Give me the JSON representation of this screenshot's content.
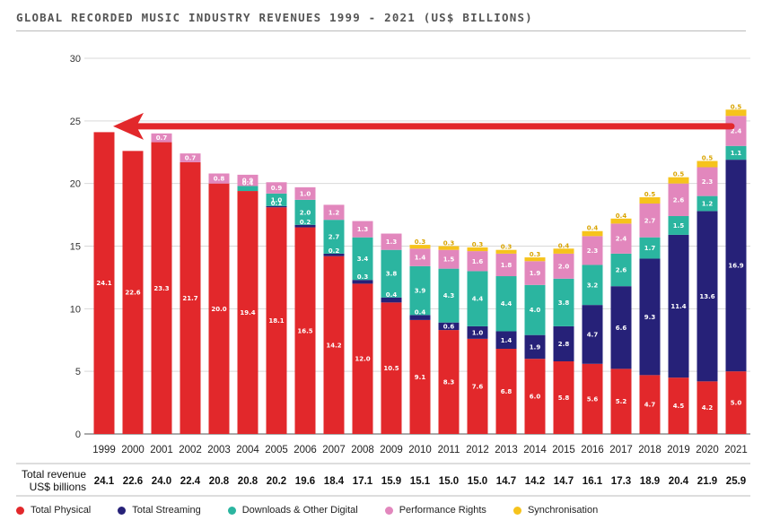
{
  "chart_data": {
    "type": "bar",
    "stacked": true,
    "title": "GLOBAL RECORDED MUSIC INDUSTRY REVENUES 1999 - 2021 (US$ BILLIONS)",
    "xlabel": "",
    "ylabel": "",
    "ylim": [
      0,
      30
    ],
    "yticks": [
      0,
      5,
      10,
      15,
      20,
      25,
      30
    ],
    "grid": true,
    "legend_position": "bottom",
    "categories": [
      "1999",
      "2000",
      "2001",
      "2002",
      "2003",
      "2004",
      "2005",
      "2006",
      "2007",
      "2008",
      "2009",
      "2010",
      "2011",
      "2012",
      "2013",
      "2014",
      "2015",
      "2016",
      "2017",
      "2018",
      "2019",
      "2020",
      "2021"
    ],
    "series": [
      {
        "name": "Total Physical",
        "color": "#e2282b",
        "values": [
          24.1,
          22.6,
          23.3,
          21.7,
          20.0,
          19.4,
          18.1,
          16.5,
          14.2,
          12.0,
          10.5,
          9.1,
          8.3,
          7.6,
          6.8,
          6.0,
          5.8,
          5.6,
          5.2,
          4.7,
          4.5,
          4.2,
          5.0
        ],
        "labels": [
          "24.1",
          "22.6",
          "23.3",
          "21.7",
          "20.0",
          "19.4",
          "18.1",
          "16.5",
          "14.2",
          "12.0",
          "10.5",
          "9.1",
          "8.3",
          "7.6",
          "6.8",
          "6.0",
          "5.8",
          "5.6",
          "5.2",
          "4.7",
          "4.5",
          "4.2",
          "5.0"
        ]
      },
      {
        "name": "Total Streaming",
        "color": "#262178",
        "values": [
          0,
          0,
          0,
          0,
          0,
          0,
          0.1,
          0.2,
          0.2,
          0.3,
          0.4,
          0.4,
          0.6,
          1.0,
          1.4,
          1.9,
          2.8,
          4.7,
          6.6,
          9.3,
          11.4,
          13.6,
          16.9
        ],
        "labels": [
          "",
          "",
          "",
          "",
          "",
          "",
          "0.1",
          "0.2",
          "0.2",
          "0.3",
          "0.4",
          "0.4",
          "0.6",
          "1.0",
          "1.4",
          "1.9",
          "2.8",
          "4.7",
          "6.6",
          "9.3",
          "11.4",
          "13.6",
          "16.9"
        ]
      },
      {
        "name": "Downloads & Other Digital",
        "color": "#2bb5a0",
        "values": [
          0,
          0,
          0,
          0,
          0,
          0.4,
          1.0,
          2.0,
          2.7,
          3.4,
          3.8,
          3.9,
          4.3,
          4.4,
          4.4,
          4.0,
          3.8,
          3.2,
          2.6,
          1.7,
          1.5,
          1.2,
          1.1
        ],
        "labels": [
          "",
          "",
          "",
          "",
          "",
          "0.4",
          "1.0",
          "2.0",
          "2.7",
          "3.4",
          "3.8",
          "3.9",
          "4.3",
          "4.4",
          "4.4",
          "4.0",
          "3.8",
          "3.2",
          "2.6",
          "1.7",
          "1.5",
          "1.2",
          "1.1"
        ]
      },
      {
        "name": "Performance Rights",
        "color": "#e287bd",
        "values": [
          0,
          0,
          0.7,
          0.7,
          0.8,
          0.9,
          0.9,
          1.0,
          1.2,
          1.3,
          1.3,
          1.4,
          1.5,
          1.6,
          1.8,
          1.9,
          2.0,
          2.3,
          2.4,
          2.7,
          2.6,
          2.3,
          2.4
        ],
        "labels": [
          "",
          "",
          "0.7",
          "0.7",
          "0.8",
          "0.9",
          "0.9",
          "1.0",
          "1.2",
          "1.3",
          "1.3",
          "1.4",
          "1.5",
          "1.6",
          "1.8",
          "1.9",
          "2.0",
          "2.3",
          "2.4",
          "2.7",
          "2.6",
          "2.3",
          "2.4"
        ]
      },
      {
        "name": "Synchronisation",
        "color": "#f6c31c",
        "values": [
          0,
          0,
          0,
          0,
          0,
          0,
          0,
          0,
          0,
          0,
          0,
          0.3,
          0.3,
          0.3,
          0.3,
          0.3,
          0.4,
          0.4,
          0.4,
          0.5,
          0.5,
          0.5,
          0.5
        ],
        "labels": [
          "",
          "",
          "",
          "",
          "",
          "",
          "",
          "",
          "",
          "",
          "",
          "0.3",
          "0.3",
          "0.3",
          "0.3",
          "0.3",
          "0.4",
          "0.4",
          "0.4",
          "0.5",
          "0.5",
          "0.5",
          "0.5"
        ]
      }
    ],
    "totals_label_line1": "Total revenue",
    "totals_label_line2": "US$ billions",
    "totals": [
      "24.1",
      "22.6",
      "24.0",
      "22.4",
      "20.8",
      "20.8",
      "20.2",
      "19.6",
      "18.4",
      "17.1",
      "15.9",
      "15.1",
      "15.0",
      "15.0",
      "14.7",
      "14.2",
      "14.7",
      "16.1",
      "17.3",
      "18.9",
      "20.4",
      "21.9",
      "25.9"
    ],
    "annotation_arrow": {
      "color": "#e2282b",
      "direction": "left",
      "from_value": 26,
      "from_year": "2021",
      "to_year": "1999"
    }
  }
}
